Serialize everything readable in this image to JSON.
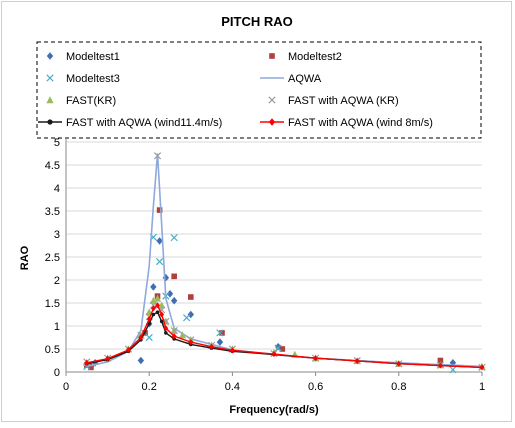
{
  "chart_data": {
    "type": "scatter",
    "title": "PITCH RAO",
    "xlabel": "Frequency(rad/s)",
    "ylabel": "RAO",
    "xlim": [
      0,
      1
    ],
    "ylim": [
      0,
      5
    ],
    "x_ticks": [
      "0",
      "0.2",
      "0.4",
      "0.6",
      "0.8",
      "1"
    ],
    "y_ticks": [
      "0",
      "0.5",
      "1",
      "1.5",
      "2",
      "2.5",
      "3",
      "3.5",
      "4",
      "4.5",
      "5"
    ],
    "legend_placement": "top (dashed box, two columns)",
    "grid": "horizontal gridlines",
    "series": [
      {
        "name": "Modeltest1",
        "color": "#3F6FB0",
        "marker": "diamond",
        "line": false,
        "x": [
          0.06,
          0.07,
          0.18,
          0.2,
          0.21,
          0.225,
          0.24,
          0.25,
          0.26,
          0.3,
          0.37,
          0.51,
          0.93
        ],
        "y": [
          0.12,
          0.2,
          0.25,
          1.05,
          1.85,
          2.85,
          2.05,
          1.7,
          1.55,
          1.25,
          0.65,
          0.55,
          0.2
        ]
      },
      {
        "name": "Modeltest2",
        "color": "#B0403C",
        "marker": "square",
        "line": false,
        "x": [
          0.05,
          0.06,
          0.19,
          0.22,
          0.225,
          0.26,
          0.3,
          0.375,
          0.52,
          0.9
        ],
        "y": [
          0.15,
          0.1,
          0.85,
          1.65,
          3.52,
          2.08,
          1.63,
          0.85,
          0.5,
          0.25
        ]
      },
      {
        "name": "Modeltest3",
        "color": "#4BACC6",
        "marker": "x",
        "line": false,
        "x": [
          0.05,
          0.2,
          0.21,
          0.225,
          0.24,
          0.26,
          0.29,
          0.37,
          0.51,
          0.93
        ],
        "y": [
          0.12,
          0.75,
          2.93,
          2.4,
          1.65,
          2.92,
          1.18,
          0.85,
          0.52,
          0.05
        ]
      },
      {
        "name": "AQWA",
        "color": "#8EA9DB",
        "marker": "line",
        "line": true,
        "x": [
          0.05,
          0.1,
          0.15,
          0.18,
          0.2,
          0.21,
          0.22,
          0.23,
          0.24,
          0.26,
          0.3,
          0.4,
          0.5,
          0.6,
          0.8,
          1.0
        ],
        "y": [
          0.12,
          0.22,
          0.45,
          0.9,
          2.3,
          3.6,
          4.75,
          3.2,
          1.6,
          0.95,
          0.72,
          0.48,
          0.38,
          0.3,
          0.2,
          0.12
        ]
      },
      {
        "name": "FAST(KR)",
        "color": "#9BBB59",
        "marker": "triangle",
        "line": false,
        "x": [
          0.05,
          0.1,
          0.15,
          0.18,
          0.2,
          0.21,
          0.22,
          0.23,
          0.24,
          0.26,
          0.28,
          0.3,
          0.35,
          0.4,
          0.5,
          0.55,
          0.6,
          0.7,
          0.8,
          0.9,
          1.0
        ],
        "y": [
          0.2,
          0.3,
          0.5,
          0.8,
          1.3,
          1.55,
          1.6,
          1.45,
          1.1,
          0.9,
          0.8,
          0.7,
          0.58,
          0.5,
          0.42,
          0.38,
          0.3,
          0.24,
          0.18,
          0.15,
          0.12
        ]
      },
      {
        "name": "FAST with AQWA (KR)",
        "color": "#9E9E9E",
        "marker": "x",
        "line": false,
        "x": [
          0.05,
          0.1,
          0.15,
          0.18,
          0.2,
          0.21,
          0.22,
          0.23,
          0.24,
          0.26,
          0.3,
          0.35,
          0.4,
          0.5,
          0.6,
          0.7,
          0.8,
          0.9,
          1.0
        ],
        "y": [
          0.22,
          0.3,
          0.5,
          0.8,
          1.2,
          1.45,
          4.7,
          1.35,
          1.1,
          0.9,
          0.7,
          0.58,
          0.5,
          0.4,
          0.3,
          0.25,
          0.18,
          0.15,
          0.1
        ]
      },
      {
        "name": "FAST with AQWA (wind11.4m/s)",
        "color": "#1A1A1A",
        "marker": "circle",
        "line": true,
        "x": [
          0.05,
          0.1,
          0.15,
          0.18,
          0.2,
          0.21,
          0.22,
          0.23,
          0.24,
          0.26,
          0.3,
          0.35,
          0.4,
          0.5,
          0.6,
          0.7,
          0.8,
          0.9,
          1.0
        ],
        "y": [
          0.18,
          0.27,
          0.45,
          0.7,
          1.05,
          1.25,
          1.3,
          1.1,
          0.85,
          0.72,
          0.6,
          0.52,
          0.45,
          0.38,
          0.3,
          0.24,
          0.18,
          0.14,
          0.1
        ]
      },
      {
        "name": "FAST with AQWA (wind 8m/s)",
        "color": "#FF0000",
        "marker": "diamond",
        "line": true,
        "x": [
          0.05,
          0.1,
          0.15,
          0.18,
          0.2,
          0.21,
          0.22,
          0.23,
          0.24,
          0.26,
          0.3,
          0.35,
          0.4,
          0.5,
          0.6,
          0.7,
          0.8,
          0.9,
          1.0
        ],
        "y": [
          0.2,
          0.29,
          0.48,
          0.75,
          1.15,
          1.38,
          1.45,
          1.25,
          0.95,
          0.78,
          0.65,
          0.55,
          0.47,
          0.39,
          0.3,
          0.24,
          0.18,
          0.14,
          0.1
        ]
      }
    ]
  }
}
